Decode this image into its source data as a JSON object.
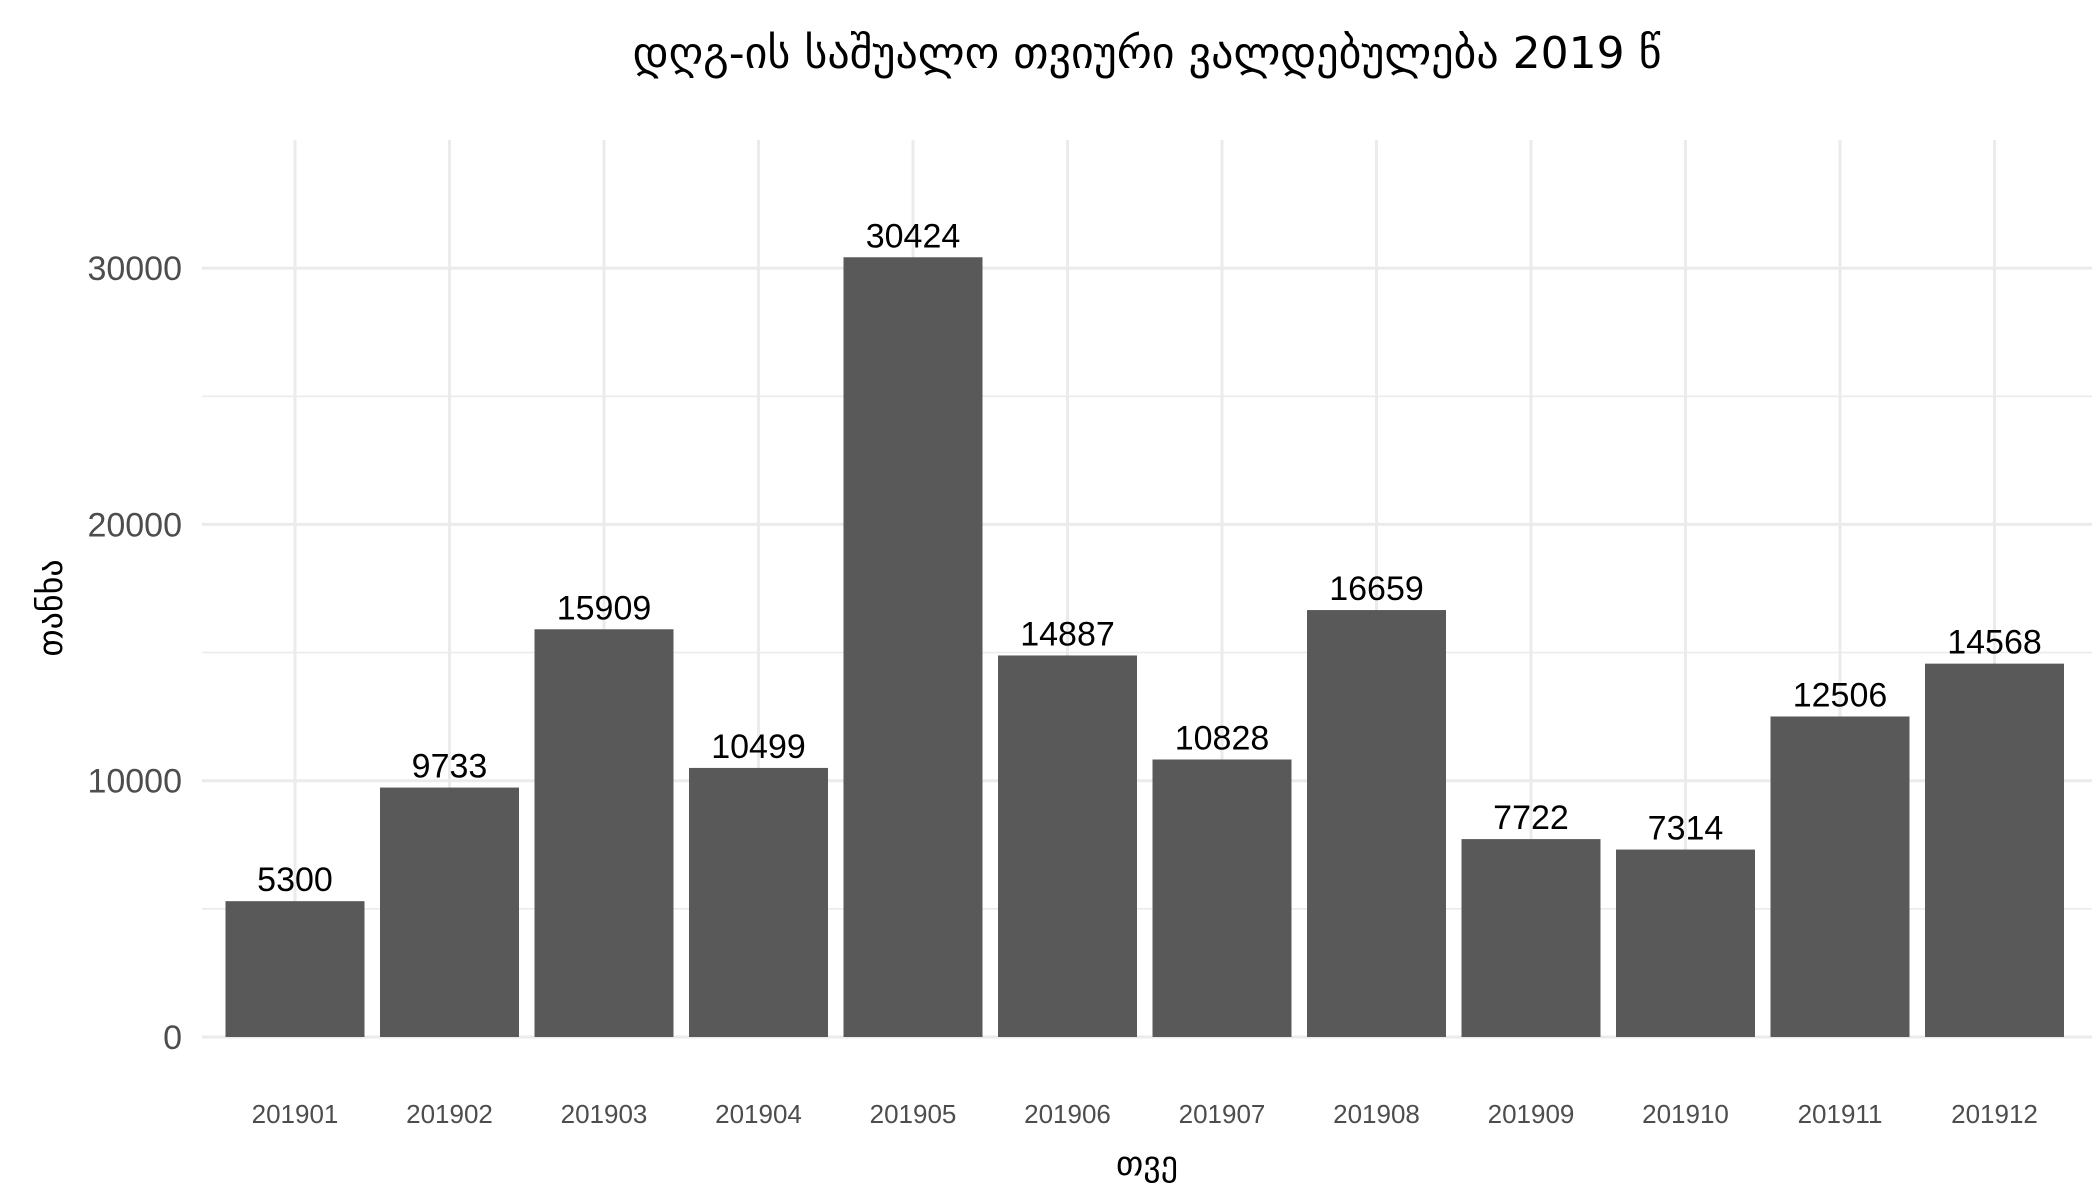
{
  "chart_data": {
    "type": "bar",
    "title": "დღგ-ის საშუალო თვიური ვალდებულება 2019 წ",
    "xlabel": "თვე",
    "ylabel": "თანხა",
    "categories": [
      "201901",
      "201902",
      "201903",
      "201904",
      "201905",
      "201906",
      "201907",
      "201908",
      "201909",
      "201910",
      "201911",
      "201912"
    ],
    "values": [
      5300,
      9733,
      15909,
      10499,
      30424,
      14887,
      10828,
      16659,
      7722,
      7314,
      12506,
      14568
    ],
    "value_labels": [
      "5300",
      "9733",
      "15909",
      "10499",
      "30424",
      "14887",
      "10828",
      "16659",
      "7722",
      "7314",
      "12506",
      "14568"
    ],
    "ylim": [
      0,
      35000
    ],
    "yticks": [
      0,
      10000,
      20000,
      30000
    ],
    "ytick_labels": [
      "0",
      "10000",
      "20000",
      "30000"
    ],
    "grid": true,
    "bar_color": "#595959",
    "grid_color": "#ebebeb"
  }
}
